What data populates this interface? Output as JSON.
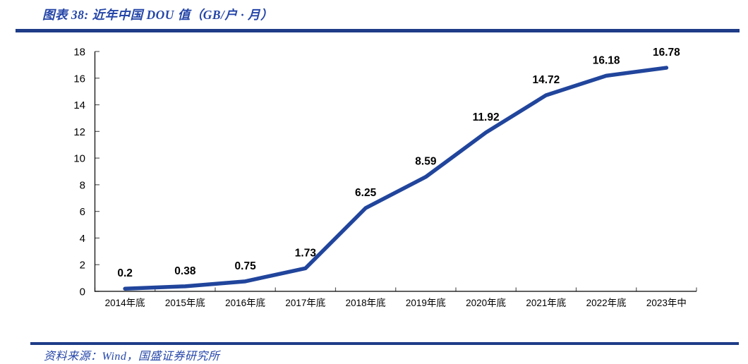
{
  "header": {
    "title": "图表 38:  近年中国 DOU 值（GB/户 · 月）"
  },
  "footer": {
    "source": "资料来源：Wind，国盛证券研究所"
  },
  "colors": {
    "accent_text": "#2546A8",
    "divider": "#1E3C87",
    "line": "#21459C",
    "axis": "#000000",
    "tick": "#595959",
    "label": "#000000"
  },
  "chart_data": {
    "type": "line",
    "title": "图表 38:  近年中国 DOU 值（GB/户 · 月）",
    "xlabel": "",
    "ylabel": "",
    "categories": [
      "2014年底",
      "2015年底",
      "2016年底",
      "2017年底",
      "2018年底",
      "2019年底",
      "2020年底",
      "2021年底",
      "2022年底",
      "2023年中"
    ],
    "values": [
      0.2,
      0.38,
      0.75,
      1.73,
      6.25,
      8.59,
      11.92,
      14.72,
      16.18,
      16.78
    ],
    "data_labels": [
      "0.2",
      "0.38",
      "0.75",
      "1.73",
      "6.25",
      "8.59",
      "11.92",
      "14.72",
      "16.18",
      "16.78"
    ],
    "ylim": [
      0,
      18
    ],
    "ytick_step": 2,
    "grid": false,
    "legend_position": "none",
    "line_color": "#21459C",
    "source": "资料来源：Wind，国盛证券研究所"
  }
}
